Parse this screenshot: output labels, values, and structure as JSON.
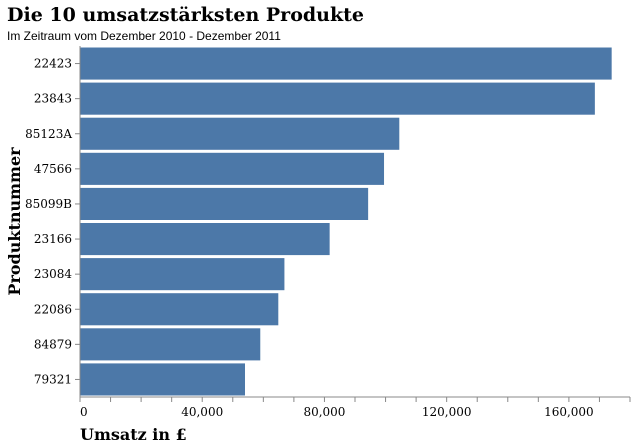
{
  "title": "Die 10 umsatzstärksten Produkte",
  "subtitle": "Im Zeitraum vom Dezember 2010 - Dezember 2011",
  "chart_data": {
    "type": "bar",
    "orientation": "horizontal",
    "title": "Die 10 umsatzstärksten Produkte",
    "subtitle": "Im Zeitraum vom Dezember 2010 - Dezember 2011",
    "xlabel": "Umsatz in £",
    "ylabel": "Produktnummer",
    "categories": [
      "22423",
      "23843",
      "85123A",
      "47566",
      "85099B",
      "23166",
      "23084",
      "22086",
      "84879",
      "79321"
    ],
    "values": [
      174000,
      168500,
      104500,
      99500,
      94300,
      81700,
      66900,
      64900,
      59000,
      54000
    ],
    "xlim": [
      0,
      180000
    ],
    "xticks": [
      0,
      40000,
      80000,
      120000,
      160000
    ],
    "xtick_labels": [
      "0",
      "40,000",
      "80,000",
      "120,000",
      "160,000"
    ],
    "bar_color": "#4c78a8",
    "grid": false
  }
}
